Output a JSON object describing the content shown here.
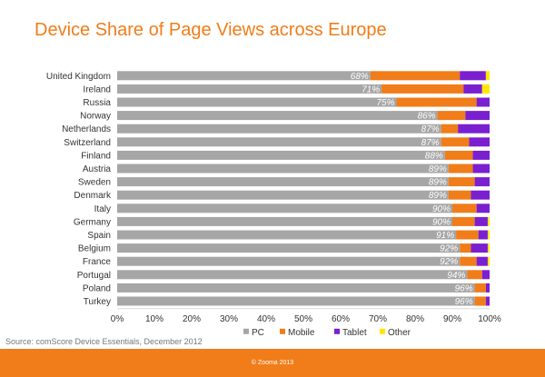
{
  "title": "Device Share of Page Views across Europe",
  "source": "Source: comScore Device Essentials, December 2012",
  "footer": "© Zooma 2013",
  "colors": {
    "PC": "#a6a6a6",
    "Mobile": "#f07d19",
    "Tablet": "#7a1fd0",
    "Other": "#ffe600",
    "accent": "#f07d19"
  },
  "chart_data": {
    "type": "bar",
    "orientation": "horizontal",
    "stacked": "percent",
    "categories": [
      "United Kingdom",
      "Ireland",
      "Russia",
      "Norway",
      "Netherlands",
      "Switzerland",
      "Finland",
      "Austria",
      "Sweden",
      "Denmark",
      "Italy",
      "Germany",
      "Spain",
      "Belgium",
      "France",
      "Portugal",
      "Poland",
      "Turkey"
    ],
    "series": [
      {
        "name": "PC",
        "values": [
          68,
          71,
          75,
          86,
          87,
          87,
          88,
          89,
          89,
          89,
          90,
          90,
          91,
          92,
          92,
          94,
          96,
          96
        ]
      },
      {
        "name": "Mobile",
        "values": [
          24,
          22,
          21.5,
          7.5,
          4.5,
          7.5,
          7.5,
          6.5,
          7,
          6,
          6.5,
          6,
          6,
          3,
          4.5,
          4,
          3,
          3
        ]
      },
      {
        "name": "Tablet",
        "values": [
          7,
          5,
          3.5,
          6.5,
          8.5,
          5.5,
          4.5,
          4.5,
          4,
          5,
          3.5,
          3.5,
          2.5,
          4.5,
          3,
          2,
          1,
          1
        ]
      },
      {
        "name": "Other",
        "values": [
          1,
          2,
          0,
          0,
          0,
          0,
          0,
          0,
          0,
          0,
          0,
          0.5,
          0.5,
          0.5,
          0.5,
          0,
          0,
          0
        ]
      }
    ],
    "data_labels": [
      "68%",
      "71%",
      "75%",
      "86%",
      "87%",
      "87%",
      "88%",
      "89%",
      "89%",
      "89%",
      "90%",
      "90%",
      "91%",
      "92%",
      "92%",
      "94%",
      "96%",
      "96%"
    ],
    "xlim": [
      0,
      100
    ],
    "x_ticks": [
      "0%",
      "10%",
      "20%",
      "30%",
      "40%",
      "50%",
      "60%",
      "70%",
      "80%",
      "90%",
      "100%"
    ],
    "legend": [
      "PC",
      "Mobile",
      "Tablet",
      "Other"
    ],
    "legend_position": "bottom",
    "grid": false
  }
}
